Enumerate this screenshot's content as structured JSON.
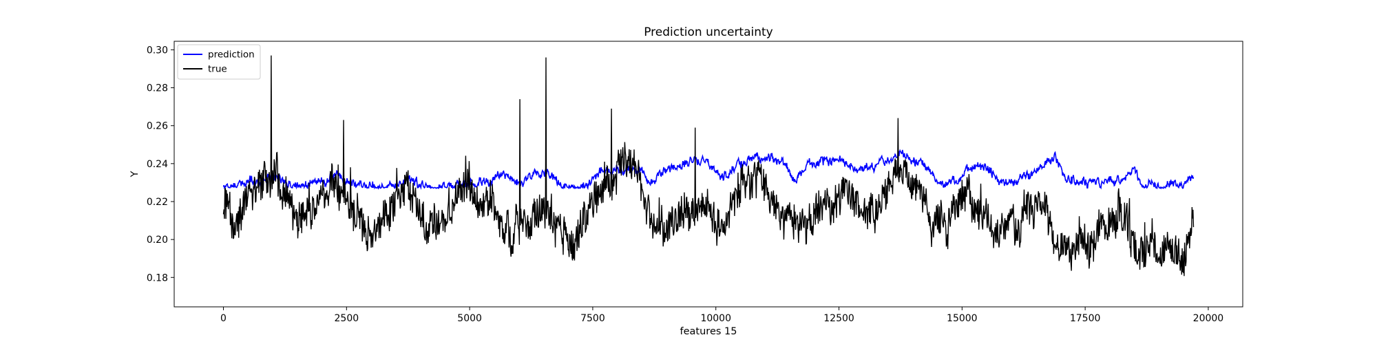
{
  "chart_data": {
    "type": "line",
    "title": "Prediction uncertainty",
    "xlabel": "features 15",
    "ylabel": "Y",
    "xlim": [
      -1000,
      20700
    ],
    "ylim": [
      0.1645,
      0.3045
    ],
    "x_ticks": [
      0,
      2500,
      5000,
      7500,
      10000,
      12500,
      15000,
      17500,
      20000
    ],
    "y_ticks": [
      0.18,
      0.2,
      0.22,
      0.24,
      0.26,
      0.28,
      0.3
    ],
    "x_tick_labels": [
      "0",
      "2500",
      "5000",
      "7500",
      "10000",
      "12500",
      "15000",
      "17500",
      "20000"
    ],
    "y_tick_labels": [
      "0.18",
      "0.20",
      "0.22",
      "0.24",
      "0.26",
      "0.28",
      "0.30"
    ],
    "grid": false,
    "legend": {
      "placement": "top-left"
    },
    "x_range": [
      0,
      19700
    ],
    "series": [
      {
        "name": "prediction",
        "color": "#0000ff",
        "baseline": 0.227,
        "noise": 0.0018,
        "envelope": [
          [
            0,
            0.228
          ],
          [
            250,
            0.228
          ],
          [
            400,
            0.23
          ],
          [
            600,
            0.23
          ],
          [
            800,
            0.231
          ],
          [
            1000,
            0.233
          ],
          [
            1150,
            0.232
          ],
          [
            1300,
            0.229
          ],
          [
            1500,
            0.228
          ],
          [
            1800,
            0.23
          ],
          [
            2000,
            0.231
          ],
          [
            2300,
            0.233
          ],
          [
            2500,
            0.231
          ],
          [
            2700,
            0.229
          ],
          [
            3000,
            0.229
          ],
          [
            3300,
            0.228
          ],
          [
            3600,
            0.23
          ],
          [
            3900,
            0.23
          ],
          [
            4200,
            0.228
          ],
          [
            4600,
            0.228
          ],
          [
            5000,
            0.23
          ],
          [
            5400,
            0.231
          ],
          [
            5700,
            0.234
          ],
          [
            6000,
            0.23
          ],
          [
            6300,
            0.234
          ],
          [
            6600,
            0.236
          ],
          [
            6900,
            0.228
          ],
          [
            7400,
            0.228
          ],
          [
            7600,
            0.236
          ],
          [
            8000,
            0.236
          ],
          [
            8400,
            0.238
          ],
          [
            8700,
            0.23
          ],
          [
            9000,
            0.237
          ],
          [
            9300,
            0.24
          ],
          [
            9600,
            0.242
          ],
          [
            9900,
            0.24
          ],
          [
            10100,
            0.232
          ],
          [
            10400,
            0.238
          ],
          [
            10700,
            0.243
          ],
          [
            11100,
            0.244
          ],
          [
            11400,
            0.24
          ],
          [
            11600,
            0.23
          ],
          [
            11900,
            0.24
          ],
          [
            12200,
            0.242
          ],
          [
            12600,
            0.242
          ],
          [
            12900,
            0.236
          ],
          [
            13300,
            0.24
          ],
          [
            13800,
            0.245
          ],
          [
            14200,
            0.24
          ],
          [
            14500,
            0.229
          ],
          [
            14900,
            0.23
          ],
          [
            15100,
            0.238
          ],
          [
            15500,
            0.238
          ],
          [
            15800,
            0.229
          ],
          [
            16200,
            0.232
          ],
          [
            16600,
            0.238
          ],
          [
            16900,
            0.244
          ],
          [
            17100,
            0.232
          ],
          [
            17400,
            0.23
          ],
          [
            17800,
            0.23
          ],
          [
            18200,
            0.231
          ],
          [
            18500,
            0.236
          ],
          [
            18700,
            0.228
          ],
          [
            19200,
            0.229
          ],
          [
            19550,
            0.228
          ],
          [
            19600,
            0.233
          ],
          [
            19700,
            0.231
          ]
        ]
      },
      {
        "name": "true",
        "color": "#000000",
        "noise": 0.0085,
        "envelope": [
          [
            0,
            0.222
          ],
          [
            200,
            0.208
          ],
          [
            400,
            0.215
          ],
          [
            600,
            0.222
          ],
          [
            800,
            0.228
          ],
          [
            1000,
            0.232
          ],
          [
            1200,
            0.225
          ],
          [
            1500,
            0.212
          ],
          [
            1800,
            0.21
          ],
          [
            2000,
            0.222
          ],
          [
            2300,
            0.228
          ],
          [
            2600,
            0.22
          ],
          [
            2900,
            0.205
          ],
          [
            3300,
            0.212
          ],
          [
            3600,
            0.222
          ],
          [
            3900,
            0.228
          ],
          [
            4100,
            0.205
          ],
          [
            4500,
            0.208
          ],
          [
            4800,
            0.222
          ],
          [
            5100,
            0.226
          ],
          [
            5500,
            0.215
          ],
          [
            5800,
            0.205
          ],
          [
            6200,
            0.208
          ],
          [
            6500,
            0.215
          ],
          [
            6800,
            0.205
          ],
          [
            7100,
            0.2
          ],
          [
            7400,
            0.212
          ],
          [
            7700,
            0.222
          ],
          [
            8000,
            0.238
          ],
          [
            8300,
            0.242
          ],
          [
            8500,
            0.228
          ],
          [
            8800,
            0.205
          ],
          [
            9100,
            0.208
          ],
          [
            9400,
            0.218
          ],
          [
            9700,
            0.222
          ],
          [
            10000,
            0.21
          ],
          [
            10300,
            0.215
          ],
          [
            10600,
            0.228
          ],
          [
            10900,
            0.232
          ],
          [
            11200,
            0.218
          ],
          [
            11500,
            0.21
          ],
          [
            11800,
            0.205
          ],
          [
            12100,
            0.215
          ],
          [
            12500,
            0.225
          ],
          [
            12800,
            0.218
          ],
          [
            13100,
            0.215
          ],
          [
            13500,
            0.23
          ],
          [
            13800,
            0.238
          ],
          [
            14100,
            0.222
          ],
          [
            14400,
            0.21
          ],
          [
            14700,
            0.205
          ],
          [
            15000,
            0.22
          ],
          [
            15300,
            0.215
          ],
          [
            15600,
            0.205
          ],
          [
            15900,
            0.212
          ],
          [
            16200,
            0.208
          ],
          [
            16600,
            0.218
          ],
          [
            16800,
            0.212
          ],
          [
            17100,
            0.198
          ],
          [
            17400,
            0.195
          ],
          [
            17700,
            0.2
          ],
          [
            18000,
            0.21
          ],
          [
            18300,
            0.215
          ],
          [
            18600,
            0.188
          ],
          [
            18900,
            0.195
          ],
          [
            19200,
            0.198
          ],
          [
            19500,
            0.195
          ],
          [
            19700,
            0.21
          ]
        ],
        "spikes": [
          [
            970,
            0.297
          ],
          [
            6550,
            0.296
          ],
          [
            6020,
            0.274
          ],
          [
            7880,
            0.269
          ],
          [
            2440,
            0.263
          ],
          [
            13700,
            0.264
          ],
          [
            9580,
            0.259
          ]
        ]
      }
    ]
  }
}
